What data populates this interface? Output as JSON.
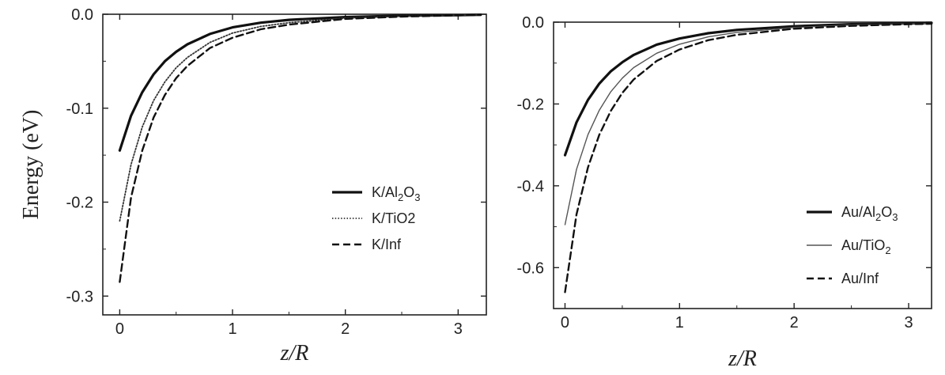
{
  "chart_data": [
    {
      "type": "line",
      "ylabel": "Energy (eV)",
      "xlabel": {
        "italic_main": "z",
        "slash": "/",
        "italic_sub": "R"
      },
      "xlim": [
        -0.15,
        3.25
      ],
      "ylim": [
        -0.32,
        0.0
      ],
      "xticks": [
        0,
        1,
        2,
        3
      ],
      "xtick_labels": [
        "0",
        "1",
        "2",
        "3"
      ],
      "yticks": [
        0.0,
        -0.1,
        -0.2,
        -0.3
      ],
      "ytick_labels": [
        "0.0",
        "-0.1",
        "-0.2",
        "-0.3"
      ],
      "grid": false,
      "legend_position": "center-right",
      "series": [
        {
          "name": "K/Al2O3",
          "label_parts": {
            "prefix": "K/Al",
            "sub1": "2",
            "mid": "O",
            "sub2": "3"
          },
          "style": "solid-thick",
          "color": "#111111",
          "x": [
            0,
            0.1,
            0.2,
            0.3,
            0.4,
            0.5,
            0.6,
            0.8,
            1.0,
            1.25,
            1.5,
            2.0,
            2.5,
            3.0,
            3.2
          ],
          "y": [
            -0.145,
            -0.108,
            -0.083,
            -0.064,
            -0.05,
            -0.04,
            -0.032,
            -0.021,
            -0.014,
            -0.009,
            -0.006,
            -0.003,
            -0.0015,
            -0.001,
            -0.0005
          ]
        },
        {
          "name": "K/TiO2",
          "label_parts": {
            "prefix": "K/TiO2",
            "sub1": "",
            "mid": "",
            "sub2": ""
          },
          "style": "dotted",
          "color": "#333333",
          "x": [
            0,
            0.1,
            0.2,
            0.3,
            0.4,
            0.5,
            0.6,
            0.8,
            1.0,
            1.25,
            1.5,
            2.0,
            2.5,
            3.0,
            3.2
          ],
          "y": [
            -0.22,
            -0.16,
            -0.12,
            -0.092,
            -0.072,
            -0.057,
            -0.046,
            -0.03,
            -0.02,
            -0.013,
            -0.009,
            -0.004,
            -0.002,
            -0.001,
            -0.0005
          ]
        },
        {
          "name": "K/Inf",
          "label_parts": {
            "prefix": "K/Inf",
            "sub1": "",
            "mid": "",
            "sub2": ""
          },
          "style": "dashed",
          "color": "#111111",
          "x": [
            0,
            0.1,
            0.2,
            0.3,
            0.4,
            0.5,
            0.6,
            0.8,
            1.0,
            1.25,
            1.5,
            2.0,
            2.5,
            3.0,
            3.2
          ],
          "y": [
            -0.285,
            -0.195,
            -0.145,
            -0.11,
            -0.086,
            -0.068,
            -0.055,
            -0.036,
            -0.025,
            -0.016,
            -0.011,
            -0.005,
            -0.0025,
            -0.0012,
            -0.0008
          ]
        }
      ]
    },
    {
      "type": "line",
      "ylabel": "",
      "xlabel": {
        "italic_main": "z",
        "slash": "/",
        "italic_sub": "R"
      },
      "xlim": [
        -0.1,
        3.2
      ],
      "ylim": [
        -0.7,
        0.0
      ],
      "xticks": [
        0,
        1,
        2,
        3
      ],
      "xtick_labels": [
        "0",
        "1",
        "2",
        "3"
      ],
      "yticks": [
        0.0,
        -0.2,
        -0.4,
        -0.6
      ],
      "ytick_labels": [
        "0.0",
        "-0.2",
        "-0.4",
        "-0.6"
      ],
      "grid": false,
      "legend_position": "bottom-right",
      "series": [
        {
          "name": "Au/Al2O3",
          "label_parts": {
            "prefix": "Au/Al",
            "sub1": "2",
            "mid": "O",
            "sub2": "3"
          },
          "style": "solid-thick",
          "color": "#111111",
          "x": [
            0,
            0.1,
            0.2,
            0.3,
            0.4,
            0.5,
            0.6,
            0.8,
            1.0,
            1.25,
            1.5,
            2.0,
            2.5,
            3.0,
            3.2
          ],
          "y": [
            -0.325,
            -0.245,
            -0.19,
            -0.15,
            -0.12,
            -0.098,
            -0.08,
            -0.055,
            -0.04,
            -0.027,
            -0.019,
            -0.01,
            -0.005,
            -0.003,
            -0.002
          ]
        },
        {
          "name": "Au/TiO2",
          "label_parts": {
            "prefix": "Au/TiO",
            "sub1": "",
            "mid": "",
            "sub2": "2"
          },
          "style": "thin-solid",
          "color": "#555555",
          "x": [
            0,
            0.1,
            0.2,
            0.3,
            0.4,
            0.5,
            0.6,
            0.8,
            1.0,
            1.25,
            1.5,
            2.0,
            2.5,
            3.0,
            3.2
          ],
          "y": [
            -0.495,
            -0.36,
            -0.275,
            -0.215,
            -0.17,
            -0.137,
            -0.111,
            -0.076,
            -0.054,
            -0.036,
            -0.025,
            -0.013,
            -0.007,
            -0.004,
            -0.003
          ]
        },
        {
          "name": "Au/Inf",
          "label_parts": {
            "prefix": "Au/Inf",
            "sub1": "",
            "mid": "",
            "sub2": ""
          },
          "style": "dashed",
          "color": "#111111",
          "x": [
            0,
            0.1,
            0.2,
            0.3,
            0.4,
            0.5,
            0.6,
            0.8,
            1.0,
            1.25,
            1.5,
            2.0,
            2.5,
            3.0,
            3.2
          ],
          "y": [
            -0.66,
            -0.47,
            -0.355,
            -0.275,
            -0.217,
            -0.173,
            -0.14,
            -0.095,
            -0.067,
            -0.044,
            -0.031,
            -0.016,
            -0.009,
            -0.005,
            -0.004
          ]
        }
      ]
    }
  ]
}
